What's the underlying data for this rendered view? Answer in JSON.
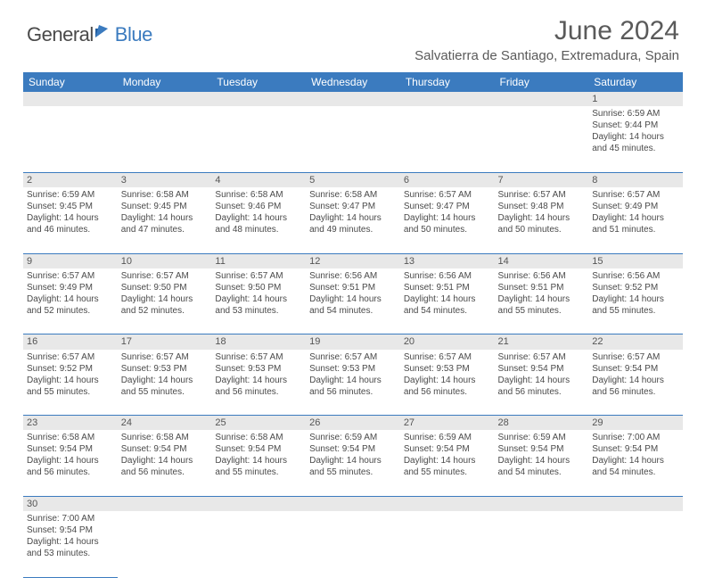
{
  "logo": {
    "part1": "General",
    "part2": "Blue"
  },
  "title": "June 2024",
  "location": "Salvatierra de Santiago, Extremadura, Spain",
  "colors": {
    "header_bg": "#3b7bbf",
    "header_text": "#ffffff",
    "daynum_bg": "#e8e8e8",
    "border": "#3b7bbf",
    "body_text": "#4a4a4a",
    "title_text": "#5a5a5a"
  },
  "day_headers": [
    "Sunday",
    "Monday",
    "Tuesday",
    "Wednesday",
    "Thursday",
    "Friday",
    "Saturday"
  ],
  "weeks": [
    [
      null,
      null,
      null,
      null,
      null,
      null,
      {
        "n": "1",
        "sr": "6:59 AM",
        "ss": "9:44 PM",
        "dl": "14 hours and 45 minutes."
      }
    ],
    [
      {
        "n": "2",
        "sr": "6:59 AM",
        "ss": "9:45 PM",
        "dl": "14 hours and 46 minutes."
      },
      {
        "n": "3",
        "sr": "6:58 AM",
        "ss": "9:45 PM",
        "dl": "14 hours and 47 minutes."
      },
      {
        "n": "4",
        "sr": "6:58 AM",
        "ss": "9:46 PM",
        "dl": "14 hours and 48 minutes."
      },
      {
        "n": "5",
        "sr": "6:58 AM",
        "ss": "9:47 PM",
        "dl": "14 hours and 49 minutes."
      },
      {
        "n": "6",
        "sr": "6:57 AM",
        "ss": "9:47 PM",
        "dl": "14 hours and 50 minutes."
      },
      {
        "n": "7",
        "sr": "6:57 AM",
        "ss": "9:48 PM",
        "dl": "14 hours and 50 minutes."
      },
      {
        "n": "8",
        "sr": "6:57 AM",
        "ss": "9:49 PM",
        "dl": "14 hours and 51 minutes."
      }
    ],
    [
      {
        "n": "9",
        "sr": "6:57 AM",
        "ss": "9:49 PM",
        "dl": "14 hours and 52 minutes."
      },
      {
        "n": "10",
        "sr": "6:57 AM",
        "ss": "9:50 PM",
        "dl": "14 hours and 52 minutes."
      },
      {
        "n": "11",
        "sr": "6:57 AM",
        "ss": "9:50 PM",
        "dl": "14 hours and 53 minutes."
      },
      {
        "n": "12",
        "sr": "6:56 AM",
        "ss": "9:51 PM",
        "dl": "14 hours and 54 minutes."
      },
      {
        "n": "13",
        "sr": "6:56 AM",
        "ss": "9:51 PM",
        "dl": "14 hours and 54 minutes."
      },
      {
        "n": "14",
        "sr": "6:56 AM",
        "ss": "9:51 PM",
        "dl": "14 hours and 55 minutes."
      },
      {
        "n": "15",
        "sr": "6:56 AM",
        "ss": "9:52 PM",
        "dl": "14 hours and 55 minutes."
      }
    ],
    [
      {
        "n": "16",
        "sr": "6:57 AM",
        "ss": "9:52 PM",
        "dl": "14 hours and 55 minutes."
      },
      {
        "n": "17",
        "sr": "6:57 AM",
        "ss": "9:53 PM",
        "dl": "14 hours and 55 minutes."
      },
      {
        "n": "18",
        "sr": "6:57 AM",
        "ss": "9:53 PM",
        "dl": "14 hours and 56 minutes."
      },
      {
        "n": "19",
        "sr": "6:57 AM",
        "ss": "9:53 PM",
        "dl": "14 hours and 56 minutes."
      },
      {
        "n": "20",
        "sr": "6:57 AM",
        "ss": "9:53 PM",
        "dl": "14 hours and 56 minutes."
      },
      {
        "n": "21",
        "sr": "6:57 AM",
        "ss": "9:54 PM",
        "dl": "14 hours and 56 minutes."
      },
      {
        "n": "22",
        "sr": "6:57 AM",
        "ss": "9:54 PM",
        "dl": "14 hours and 56 minutes."
      }
    ],
    [
      {
        "n": "23",
        "sr": "6:58 AM",
        "ss": "9:54 PM",
        "dl": "14 hours and 56 minutes."
      },
      {
        "n": "24",
        "sr": "6:58 AM",
        "ss": "9:54 PM",
        "dl": "14 hours and 56 minutes."
      },
      {
        "n": "25",
        "sr": "6:58 AM",
        "ss": "9:54 PM",
        "dl": "14 hours and 55 minutes."
      },
      {
        "n": "26",
        "sr": "6:59 AM",
        "ss": "9:54 PM",
        "dl": "14 hours and 55 minutes."
      },
      {
        "n": "27",
        "sr": "6:59 AM",
        "ss": "9:54 PM",
        "dl": "14 hours and 55 minutes."
      },
      {
        "n": "28",
        "sr": "6:59 AM",
        "ss": "9:54 PM",
        "dl": "14 hours and 54 minutes."
      },
      {
        "n": "29",
        "sr": "7:00 AM",
        "ss": "9:54 PM",
        "dl": "14 hours and 54 minutes."
      }
    ],
    [
      {
        "n": "30",
        "sr": "7:00 AM",
        "ss": "9:54 PM",
        "dl": "14 hours and 53 minutes."
      },
      null,
      null,
      null,
      null,
      null,
      null
    ]
  ],
  "labels": {
    "sunrise": "Sunrise: ",
    "sunset": "Sunset: ",
    "daylight": "Daylight: "
  }
}
